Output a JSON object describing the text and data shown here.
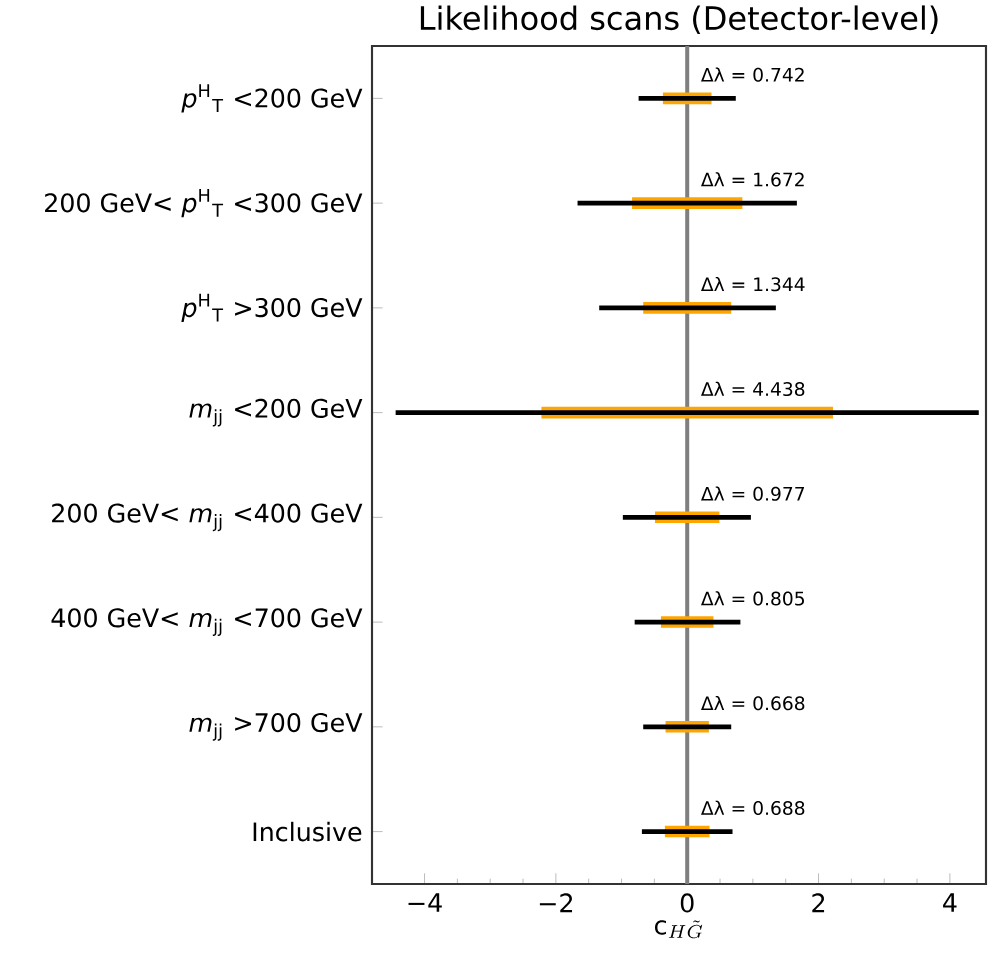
{
  "chart_data": {
    "type": "bar",
    "orientation": "horizontal",
    "title": "Likelihood scans (Detector-level)",
    "xlabel": "\\mathrm{c}_{H\\tilde{G}}",
    "categories": [
      "*p*$^{H}$$_{T}$ <200 GeV",
      "200 GeV< *p*$^{H}$$_{T}$ <300 GeV",
      "*p*$^{H}$$_{T}$ >300 GeV",
      "*m*$_{jj}$ <200 GeV",
      "200 GeV< *m*$_{jj}$ <400 GeV",
      "400 GeV< *m*$_{jj}$ <700 GeV",
      "*m*$_{jj}$ >700 GeV",
      "Inclusive"
    ],
    "series": [
      {
        "color": "#ffa500",
        "base": [
          -0.37,
          -0.84,
          -0.67,
          -2.22,
          -0.49,
          -0.4,
          -0.33,
          -0.34
        ],
        "values": [
          0.74,
          1.68,
          1.34,
          4.44,
          0.98,
          0.8,
          0.66,
          0.68
        ]
      },
      {
        "color": "#000000",
        "base": [
          -0.74,
          -1.67,
          -1.34,
          -4.44,
          -0.98,
          -0.8,
          -0.67,
          -0.69
        ],
        "values": [
          1.48,
          3.34,
          2.69,
          8.88,
          1.95,
          1.61,
          1.34,
          1.38
        ]
      }
    ],
    "xlim": [
      -4.8,
      4.55
    ],
    "xticks": [
      {
        "value": -4,
        "label": "−4"
      },
      {
        "value": -2,
        "label": "−2"
      },
      0,
      2,
      4
    ],
    "ref_lines": [
      {
        "axis": "x",
        "value": 0,
        "color": "#7f7f7f"
      }
    ],
    "annotations": [
      "Δλ = 0.742",
      "Δλ = 1.672",
      "Δλ = 1.344",
      "Δλ = 4.438",
      "Δλ = 0.977",
      "Δλ = 0.805",
      "Δλ = 0.668",
      "Δλ = 0.688"
    ]
  }
}
